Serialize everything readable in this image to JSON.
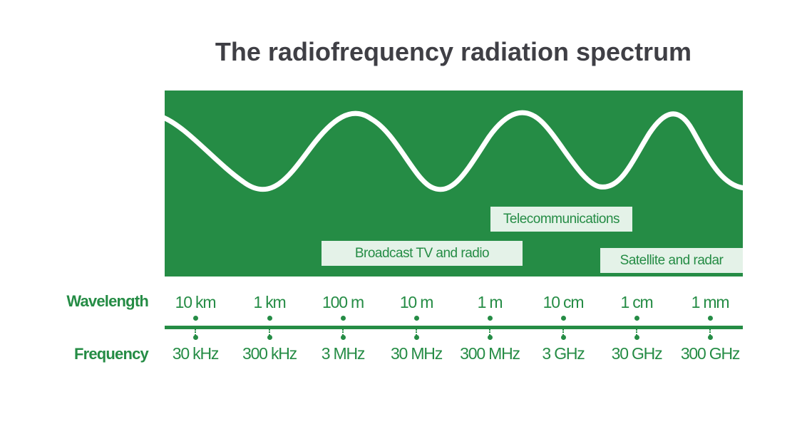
{
  "title": "The radiofrequency radiation spectrum",
  "colors": {
    "accent": "#258c45",
    "tag_bg": "#e4f2e8",
    "title": "#3f3f45",
    "wave": "#ffffff"
  },
  "bands": {
    "telecom": "Telecommunications",
    "broadcast": "Broadcast TV and radio",
    "satellite": "Satellite and radar"
  },
  "scale": {
    "wavelength_label": "Wavelength",
    "frequency_label": "Frequency",
    "wavelengths": [
      "10 km",
      "1 km",
      "100 m",
      "10 m",
      "1 m",
      "10 cm",
      "1 cm",
      "1 mm"
    ],
    "frequencies": [
      "30 kHz",
      "300 kHz",
      "3 MHz",
      "30 MHz",
      "300 MHz",
      "3 GHz",
      "30 GHz",
      "300 GHz"
    ]
  }
}
